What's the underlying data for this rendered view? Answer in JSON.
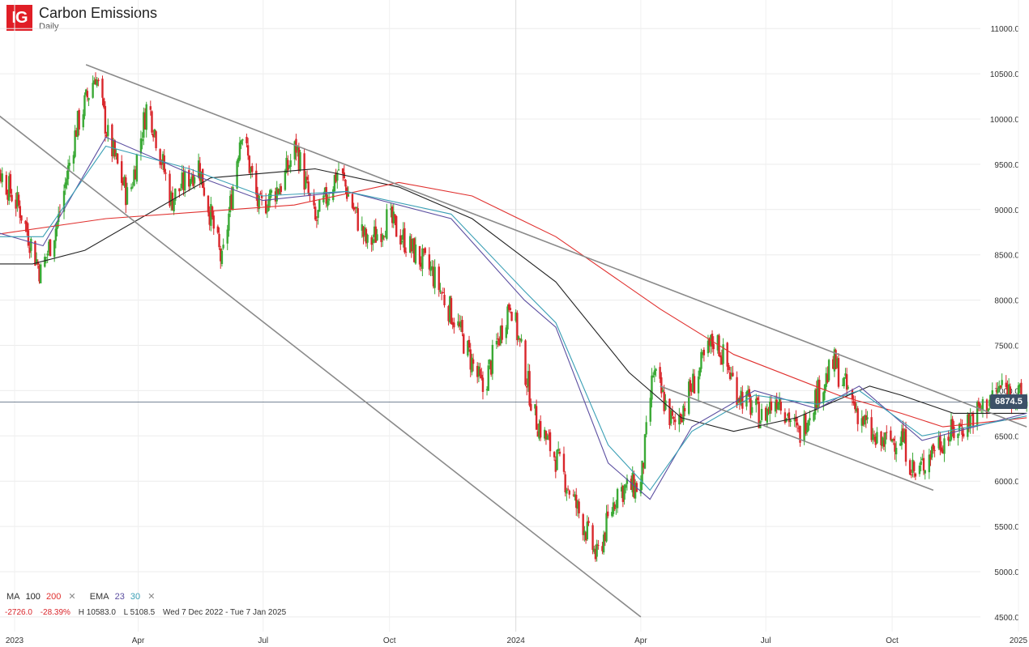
{
  "header": {
    "logo": "IG",
    "title": "Carbon Emissions",
    "subtitle": "Daily"
  },
  "legend": {
    "ma_label": "MA",
    "ma1": "100",
    "ma2": "200",
    "ema_label": "EMA",
    "ema1": "23",
    "ema2": "30",
    "close": "✕"
  },
  "stats": {
    "change": "-2726.0",
    "change_pct": "-28.39%",
    "high": "H 10583.0",
    "low": "L 5108.5",
    "range": "Wed 7 Dec 2022 - Tue 7 Jan 2025"
  },
  "price_tag": "6874.5",
  "colors": {
    "up": "#3aa935",
    "down": "#d9262b",
    "ma100": "#222222",
    "ma200": "#e0302e",
    "ema23": "#5b4ea0",
    "ema30": "#3a9fb5",
    "trendline": "#8a8a8a",
    "accent": "#3d5168"
  },
  "chart_data": {
    "type": "candlestick",
    "title": "Carbon Emissions",
    "subtitle": "Daily",
    "x_ticks": [
      "2023",
      "Apr",
      "Jul",
      "Oct",
      "2024",
      "Apr",
      "Jul",
      "Oct",
      "2025"
    ],
    "y_ticks": [
      "11000.0",
      "10500.0",
      "10000.0",
      "9500.0",
      "9000.0",
      "8500.0",
      "8000.0",
      "7500.0",
      "7000.0",
      "6500.0",
      "6000.0",
      "5500.0",
      "5000.0",
      "4500.0"
    ],
    "ylim": [
      4500,
      11000
    ],
    "last_price": 6874.5,
    "close_path": [
      [
        "2022-12-07",
        9600
      ],
      [
        "2022-12-20",
        9450
      ],
      [
        "2023-01-05",
        9000
      ],
      [
        "2023-01-20",
        8300
      ],
      [
        "2023-02-02",
        8900
      ],
      [
        "2023-02-15",
        9900
      ],
      [
        "2023-03-01",
        10500
      ],
      [
        "2023-03-10",
        9800
      ],
      [
        "2023-03-25",
        9100
      ],
      [
        "2023-04-08",
        10200
      ],
      [
        "2023-04-25",
        9100
      ],
      [
        "2023-05-15",
        9500
      ],
      [
        "2023-06-01",
        8400
      ],
      [
        "2023-06-15",
        9900
      ],
      [
        "2023-06-28",
        9000
      ],
      [
        "2023-07-15",
        9300
      ],
      [
        "2023-07-25",
        9700
      ],
      [
        "2023-08-08",
        8850
      ],
      [
        "2023-08-25",
        9450
      ],
      [
        "2023-09-15",
        8600
      ],
      [
        "2023-09-30",
        8900
      ],
      [
        "2023-10-15",
        8600
      ],
      [
        "2023-11-01",
        8300
      ],
      [
        "2023-11-20",
        7700
      ],
      [
        "2023-12-08",
        7000
      ],
      [
        "2023-12-28",
        8000
      ],
      [
        "2024-01-15",
        6700
      ],
      [
        "2024-02-01",
        6200
      ],
      [
        "2024-02-20",
        5500
      ],
      [
        "2024-02-29",
        5150
      ],
      [
        "2024-03-15",
        5900
      ],
      [
        "2024-04-01",
        5950
      ],
      [
        "2024-04-10",
        7200
      ],
      [
        "2024-04-25",
        6600
      ],
      [
        "2024-05-10",
        7100
      ],
      [
        "2024-05-25",
        7600
      ],
      [
        "2024-06-10",
        7000
      ],
      [
        "2024-06-28",
        6700
      ],
      [
        "2024-07-10",
        6950
      ],
      [
        "2024-07-25",
        6500
      ],
      [
        "2024-08-05",
        6900
      ],
      [
        "2024-08-20",
        7300
      ],
      [
        "2024-09-01",
        6900
      ],
      [
        "2024-09-20",
        6400
      ],
      [
        "2024-10-08",
        6500
      ],
      [
        "2024-10-18",
        6050
      ],
      [
        "2024-11-01",
        6400
      ],
      [
        "2024-11-20",
        6600
      ],
      [
        "2024-12-05",
        6800
      ],
      [
        "2024-12-20",
        7050
      ],
      [
        "2025-01-07",
        6874.5
      ]
    ],
    "series": [
      {
        "name": "MA 100",
        "values": [
          [
            0,
            8400
          ],
          [
            0.05,
            8400
          ],
          [
            0.1,
            8550
          ],
          [
            0.22,
            9350
          ],
          [
            0.32,
            9450
          ],
          [
            0.4,
            9250
          ],
          [
            0.47,
            8900
          ],
          [
            0.55,
            8200
          ],
          [
            0.62,
            7200
          ],
          [
            0.67,
            6700
          ],
          [
            0.72,
            6550
          ],
          [
            0.78,
            6700
          ],
          [
            0.85,
            7050
          ],
          [
            0.88,
            6950
          ],
          [
            0.93,
            6750
          ],
          [
            1.0,
            6750
          ]
        ]
      },
      {
        "name": "MA 200",
        "values": [
          [
            0,
            8700
          ],
          [
            0.12,
            8900
          ],
          [
            0.3,
            9050
          ],
          [
            0.4,
            9300
          ],
          [
            0.47,
            9150
          ],
          [
            0.55,
            8700
          ],
          [
            0.65,
            7900
          ],
          [
            0.72,
            7400
          ],
          [
            0.82,
            6950
          ],
          [
            0.88,
            6750
          ],
          [
            0.92,
            6600
          ],
          [
            1.0,
            6700
          ]
        ]
      },
      {
        "name": "EMA 23",
        "values": [
          [
            0,
            8800
          ],
          [
            0.06,
            8600
          ],
          [
            0.12,
            9800
          ],
          [
            0.2,
            9400
          ],
          [
            0.27,
            9100
          ],
          [
            0.35,
            9200
          ],
          [
            0.45,
            8900
          ],
          [
            0.52,
            8000
          ],
          [
            0.55,
            7700
          ],
          [
            0.6,
            6200
          ],
          [
            0.64,
            5800
          ],
          [
            0.68,
            6600
          ],
          [
            0.74,
            7000
          ],
          [
            0.8,
            6800
          ],
          [
            0.84,
            7050
          ],
          [
            0.9,
            6450
          ],
          [
            1.0,
            6750
          ]
        ]
      },
      {
        "name": "EMA 30",
        "values": [
          [
            0,
            8700
          ],
          [
            0.06,
            8700
          ],
          [
            0.12,
            9700
          ],
          [
            0.2,
            9450
          ],
          [
            0.27,
            9150
          ],
          [
            0.35,
            9200
          ],
          [
            0.45,
            8950
          ],
          [
            0.52,
            8100
          ],
          [
            0.55,
            7750
          ],
          [
            0.6,
            6400
          ],
          [
            0.64,
            5900
          ],
          [
            0.68,
            6550
          ],
          [
            0.74,
            6950
          ],
          [
            0.8,
            6850
          ],
          [
            0.84,
            7000
          ],
          [
            0.9,
            6500
          ],
          [
            1.0,
            6720
          ]
        ]
      }
    ],
    "trendlines": [
      {
        "from": [
          "2023-02-22",
          10600
        ],
        "to": [
          "2025-01-07",
          6600
        ]
      },
      {
        "from": [
          "2022-12-07",
          10200
        ],
        "to": [
          "2024-04-01",
          4500
        ]
      },
      {
        "from": [
          "2024-04-15",
          7050
        ],
        "to": [
          "2024-10-31",
          5900
        ]
      }
    ],
    "grid": true,
    "legend_position": "bottom-left"
  }
}
